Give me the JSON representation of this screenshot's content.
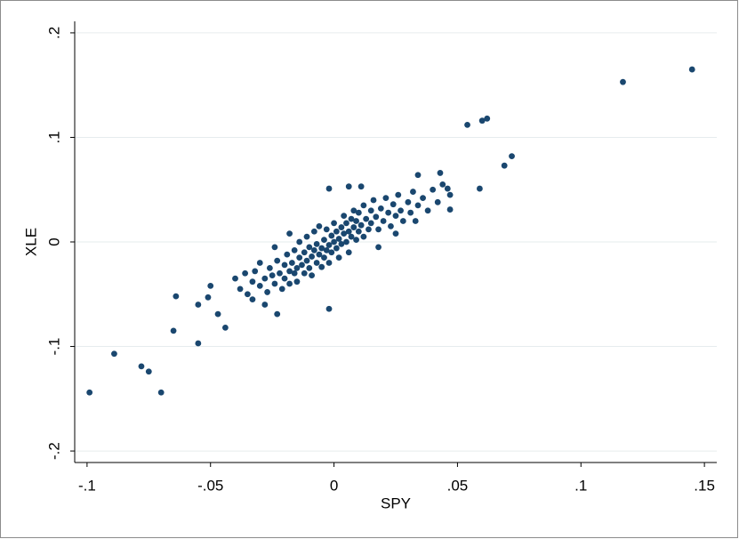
{
  "chart_data": {
    "type": "scatter",
    "x_label": "SPY",
    "y_label": "XLE",
    "color": "#1a476f",
    "grid": true,
    "xlim": [
      -0.105,
      0.155
    ],
    "ylim": [
      -0.211,
      0.211
    ],
    "xticks": [
      {
        "value": -0.1,
        "label": "-.1"
      },
      {
        "value": -0.05,
        "label": "-.05"
      },
      0,
      {
        "value": 0.05,
        "label": ".05"
      },
      {
        "value": 0.1,
        "label": ".1"
      },
      {
        "value": 0.15,
        "label": ".15"
      }
    ],
    "yticks": [
      {
        "value": -0.2,
        "label": "-.2"
      },
      {
        "value": -0.1,
        "label": "-.1"
      },
      0,
      {
        "value": 0.1,
        "label": ".1"
      },
      {
        "value": 0.2,
        "label": ".2"
      }
    ],
    "x": [
      -0.099,
      -0.089,
      -0.078,
      -0.075,
      -0.07,
      -0.065,
      -0.064,
      -0.055,
      -0.055,
      -0.051,
      -0.05,
      -0.047,
      -0.044,
      -0.023,
      -0.002,
      -0.002,
      0.054,
      0.06,
      0.062,
      0.117,
      0.145,
      0.069,
      0.072,
      0.059,
      0.047,
      0.043,
      0.034,
      0.046,
      0.006,
      0.011,
      -0.04,
      -0.038,
      -0.036,
      -0.035,
      -0.033,
      -0.032,
      -0.03,
      -0.03,
      -0.028,
      -0.027,
      -0.026,
      -0.025,
      -0.024,
      -0.023,
      -0.022,
      -0.021,
      -0.02,
      -0.02,
      -0.019,
      -0.018,
      -0.018,
      -0.017,
      -0.016,
      -0.016,
      -0.015,
      -0.015,
      -0.014,
      -0.014,
      -0.013,
      -0.012,
      -0.012,
      -0.011,
      -0.011,
      -0.01,
      -0.01,
      -0.009,
      -0.009,
      -0.008,
      -0.008,
      -0.007,
      -0.007,
      -0.006,
      -0.006,
      -0.005,
      -0.005,
      -0.004,
      -0.004,
      -0.003,
      -0.003,
      -0.002,
      -0.002,
      -0.001,
      -0.001,
      0.0,
      0.0,
      0.001,
      0.001,
      0.002,
      0.002,
      0.003,
      0.003,
      0.004,
      0.004,
      0.005,
      0.005,
      0.006,
      0.006,
      0.007,
      0.007,
      0.008,
      0.008,
      0.009,
      0.009,
      0.01,
      0.01,
      0.011,
      0.012,
      0.012,
      0.013,
      0.014,
      0.015,
      0.015,
      0.016,
      0.017,
      0.018,
      0.019,
      0.02,
      0.021,
      0.022,
      0.023,
      0.024,
      0.025,
      0.026,
      0.027,
      0.028,
      0.03,
      0.031,
      0.032,
      0.034,
      0.036,
      0.038,
      0.04,
      0.042,
      0.044,
      0.047,
      -0.028,
      -0.033,
      0.018,
      0.025,
      -0.018,
      -0.024,
      0.033
    ],
    "values": [
      -0.144,
      -0.107,
      -0.119,
      -0.124,
      -0.144,
      -0.085,
      -0.052,
      -0.097,
      -0.06,
      -0.053,
      -0.042,
      -0.069,
      -0.082,
      -0.069,
      -0.064,
      0.051,
      0.112,
      0.116,
      0.118,
      0.153,
      0.165,
      0.073,
      0.082,
      0.051,
      0.031,
      0.066,
      0.064,
      0.051,
      0.053,
      0.053,
      -0.035,
      -0.045,
      -0.03,
      -0.05,
      -0.038,
      -0.028,
      -0.042,
      -0.02,
      -0.035,
      -0.048,
      -0.025,
      -0.032,
      -0.04,
      -0.018,
      -0.03,
      -0.045,
      -0.022,
      -0.035,
      -0.012,
      -0.028,
      -0.04,
      -0.02,
      -0.03,
      -0.008,
      -0.025,
      -0.038,
      -0.015,
      0.0,
      -0.022,
      -0.03,
      -0.01,
      -0.018,
      0.005,
      -0.025,
      -0.005,
      -0.014,
      -0.032,
      -0.008,
      0.01,
      -0.02,
      -0.002,
      -0.012,
      0.015,
      -0.006,
      -0.024,
      0.002,
      -0.015,
      -0.008,
      0.012,
      -0.003,
      -0.02,
      0.006,
      -0.01,
      0.0,
      0.018,
      -0.006,
      0.01,
      0.003,
      -0.015,
      0.014,
      -0.002,
      0.008,
      0.025,
      0.0,
      0.018,
      0.01,
      -0.01,
      0.005,
      0.022,
      0.014,
      0.03,
      0.002,
      0.02,
      0.01,
      0.028,
      0.016,
      0.005,
      0.035,
      0.022,
      0.012,
      0.03,
      0.018,
      0.04,
      0.024,
      0.012,
      0.032,
      0.02,
      0.042,
      0.028,
      0.015,
      0.036,
      0.025,
      0.045,
      0.03,
      0.02,
      0.038,
      0.028,
      0.048,
      0.035,
      0.042,
      0.03,
      0.05,
      0.038,
      0.055,
      0.045,
      -0.06,
      -0.055,
      -0.005,
      0.008,
      0.008,
      -0.005,
      0.02
    ]
  }
}
